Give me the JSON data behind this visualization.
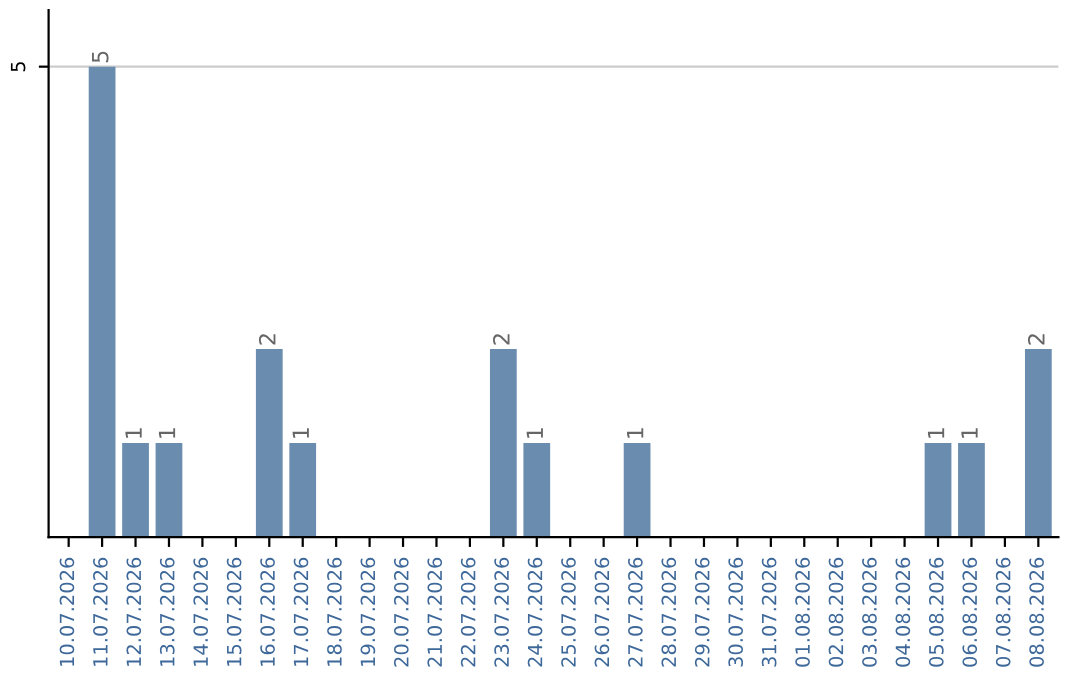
{
  "chart_data": {
    "type": "bar",
    "categories": [
      "10.07.2026",
      "11.07.2026",
      "12.07.2026",
      "13.07.2026",
      "14.07.2026",
      "15.07.2026",
      "16.07.2026",
      "17.07.2026",
      "18.07.2026",
      "19.07.2026",
      "20.07.2026",
      "21.07.2026",
      "22.07.2026",
      "23.07.2026",
      "24.07.2026",
      "25.07.2026",
      "26.07.2026",
      "27.07.2026",
      "28.07.2026",
      "29.07.2026",
      "30.07.2026",
      "31.07.2026",
      "01.08.2026",
      "02.08.2026",
      "03.08.2026",
      "04.08.2026",
      "05.08.2026",
      "06.08.2026",
      "07.08.2026",
      "08.08.2026"
    ],
    "values": [
      0,
      5,
      1,
      1,
      0,
      0,
      2,
      1,
      0,
      0,
      0,
      0,
      0,
      2,
      1,
      0,
      0,
      1,
      0,
      0,
      0,
      0,
      0,
      0,
      0,
      0,
      1,
      1,
      0,
      2
    ],
    "value_labels": [
      null,
      "5",
      "1",
      "1",
      null,
      null,
      "2",
      "1",
      null,
      null,
      null,
      null,
      null,
      "2",
      "1",
      null,
      null,
      "1",
      null,
      null,
      null,
      null,
      null,
      null,
      null,
      null,
      "1",
      "1",
      null,
      "2"
    ],
    "color": "#6a8caf",
    "ylim": [
      0,
      5.6
    ],
    "yticks": [
      5
    ],
    "grid": "y"
  }
}
